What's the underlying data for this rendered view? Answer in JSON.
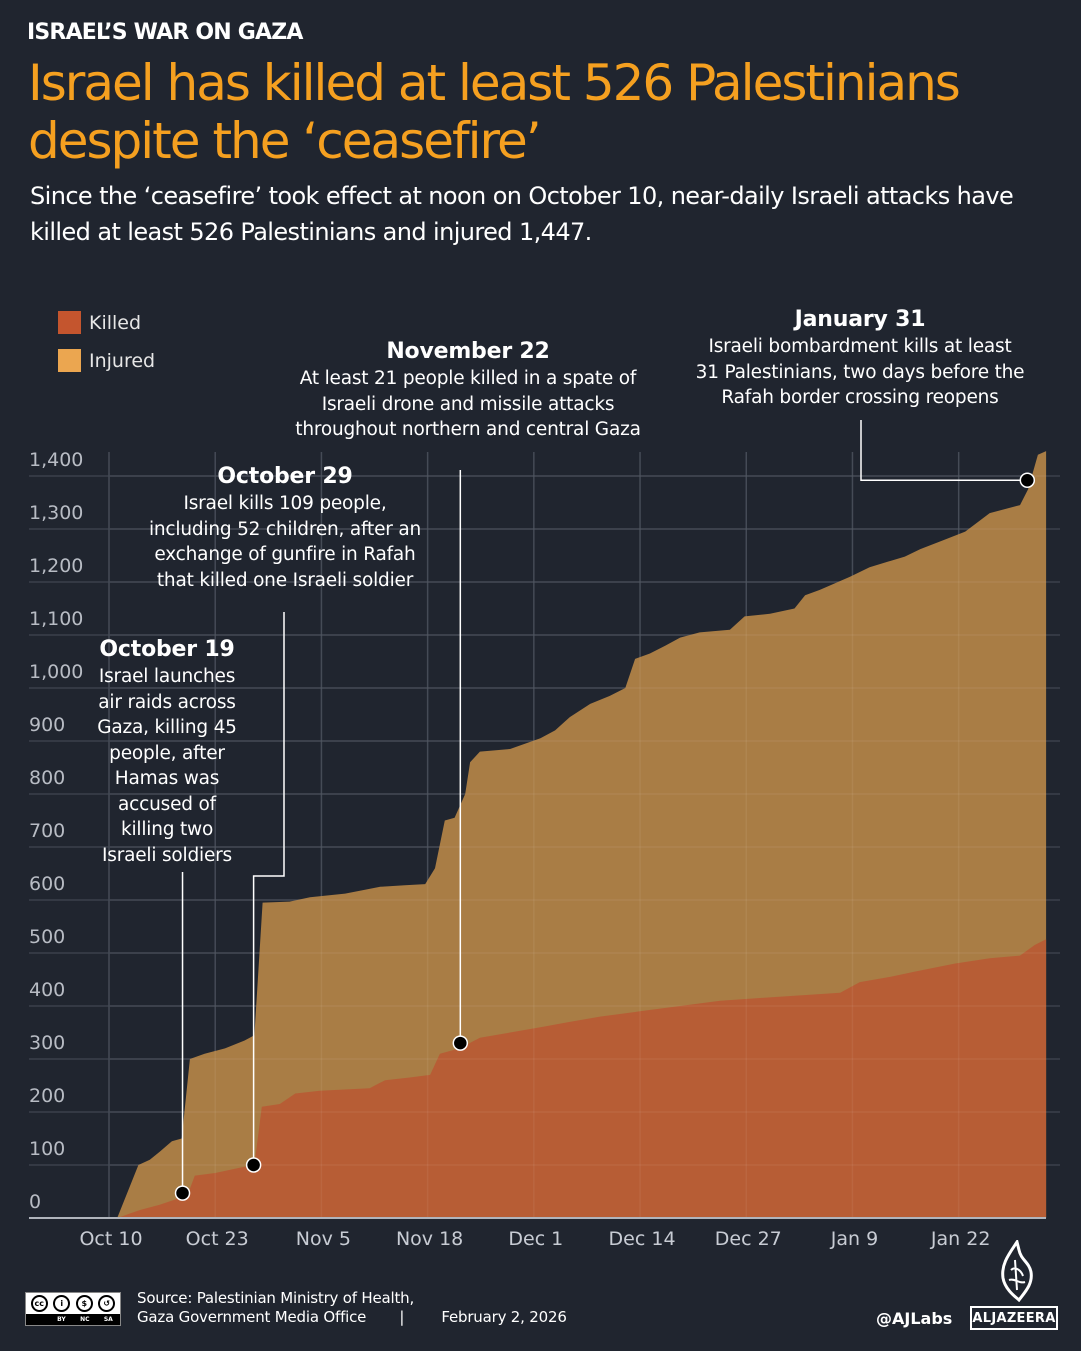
{
  "header": {
    "kicker": "ISRAEL’S WAR ON GAZA",
    "title": "Israel has killed at least 526 Palestinians despite the ‘ceasefire’",
    "subtitle": "Since the ‘ceasefire’ took effect at noon on October 10, near-daily Israeli attacks have killed at least 526 Palestinians and injured 1,447."
  },
  "legend": [
    {
      "label": "Killed",
      "color": "#c4552e"
    },
    {
      "label": "Injured",
      "color": "#eba650"
    }
  ],
  "annotations": [
    {
      "date": "October 19",
      "text": "Israel launches air raids across Gaza, killing 45 people, after Hamas was accused of killing two Israeli soldiers",
      "lines": [
        "Israel launches",
        "air raids across",
        "Gaza, killing 45",
        "people, after",
        "Hamas was",
        "accused of",
        "killing two",
        "Israeli soldiers"
      ],
      "day": 9,
      "value": 47,
      "series": "Killed"
    },
    {
      "date": "October 29",
      "text": "Israel kills 109 people, including 52 children, after an exchange of gunfire in Rafah that killed one Israeli soldier",
      "lines": [
        "Israel kills 109 people,",
        "including 52 children, after an",
        "exchange of gunfire in Rafah",
        "that killed one Israeli soldier"
      ],
      "day": 17.7,
      "value": 100,
      "series": "Killed"
    },
    {
      "date": "November 22",
      "text": "At least 21 people killed in a spate of Israeli drone and missile attacks throughout northern and central Gaza",
      "lines": [
        "At least 21 people killed in a spate of",
        "Israeli drone and missile attacks",
        "throughout northern and central Gaza"
      ],
      "day": 43,
      "value": 330,
      "series": "Killed"
    },
    {
      "date": "January 31",
      "text": "Israeli bombardment kills at least 31 Palestinians, two days before the Rafah border crossing reopens",
      "lines": [
        "Israeli bombardment kills at least",
        "31 Palestinians, two days before the",
        "Rafah border crossing reopens"
      ],
      "day": 112.4,
      "value": 1392,
      "series": "Injured"
    }
  ],
  "footer": {
    "source_line1": "Source:  Palestinian Ministry of Health,",
    "source_line2": "Gaza Government Media Office",
    "separator": "|",
    "date": "February 2, 2026",
    "handle": "@AJLabs",
    "brand": "ALJAZEERA",
    "license": [
      "BY",
      "NC",
      "SA"
    ],
    "license_badge": "cc"
  },
  "chart_data": {
    "type": "area",
    "title": "Israel has killed at least 526 Palestinians despite the ‘ceasefire’",
    "xlabel": "",
    "ylabel": "",
    "x_unit": "days since October 10",
    "x_tick_labels": [
      "Oct 10",
      "Oct 23",
      "Nov 5",
      "Nov 18",
      "Dec 1",
      "Dec 14",
      "Dec 27",
      "Jan 9",
      "Jan 22"
    ],
    "x_tick_days": [
      0,
      13,
      26,
      39,
      52,
      65,
      78,
      91,
      104
    ],
    "xlim": [
      0,
      115
    ],
    "y_ticks": [
      0,
      100,
      200,
      300,
      400,
      500,
      600,
      700,
      800,
      900,
      1000,
      1100,
      1200,
      1300,
      1400
    ],
    "y_tick_labels": [
      "0",
      "100",
      "200",
      "300",
      "400",
      "500",
      "600",
      "700",
      "800",
      "900",
      "1,000",
      "1,100",
      "1,200",
      "1,300",
      "1,400"
    ],
    "ylim": [
      0,
      1400
    ],
    "grid": true,
    "legend_position": "top-left",
    "series": [
      {
        "name": "Injured",
        "color": "#ad8046",
        "points": [
          [
            1,
            0
          ],
          [
            3.6,
            100
          ],
          [
            5,
            110
          ],
          [
            6.2,
            125
          ],
          [
            7.7,
            145
          ],
          [
            8.9,
            150
          ],
          [
            9.9,
            300
          ],
          [
            11.7,
            310
          ],
          [
            14.2,
            320
          ],
          [
            16.6,
            335
          ],
          [
            17.8,
            345
          ],
          [
            18.8,
            595
          ],
          [
            22.1,
            597
          ],
          [
            24.6,
            605
          ],
          [
            28.9,
            612
          ],
          [
            33.2,
            625
          ],
          [
            36.2,
            628
          ],
          [
            38.7,
            630
          ],
          [
            39.9,
            660
          ],
          [
            41.1,
            750
          ],
          [
            42.3,
            755
          ],
          [
            43.6,
            800
          ],
          [
            44.2,
            860
          ],
          [
            45.4,
            880
          ],
          [
            49.1,
            885
          ],
          [
            52.8,
            905
          ],
          [
            54.6,
            920
          ],
          [
            56.4,
            945
          ],
          [
            58.9,
            970
          ],
          [
            61.3,
            985
          ],
          [
            63.2,
            1000
          ],
          [
            64.4,
            1055
          ],
          [
            66.2,
            1065
          ],
          [
            68.1,
            1080
          ],
          [
            69.9,
            1095
          ],
          [
            72.3,
            1105
          ],
          [
            76,
            1110
          ],
          [
            77.8,
            1135
          ],
          [
            80.9,
            1140
          ],
          [
            83.9,
            1150
          ],
          [
            85.2,
            1175
          ],
          [
            87,
            1185
          ],
          [
            90.7,
            1210
          ],
          [
            93.1,
            1228
          ],
          [
            97.4,
            1248
          ],
          [
            99.3,
            1262
          ],
          [
            102.3,
            1280
          ],
          [
            104.8,
            1295
          ],
          [
            107.8,
            1330
          ],
          [
            111.5,
            1345
          ],
          [
            112.5,
            1375
          ],
          [
            113.7,
            1440
          ],
          [
            114.7,
            1447
          ]
        ]
      },
      {
        "name": "Killed",
        "color": "#b85c35",
        "points": [
          [
            1,
            0
          ],
          [
            3.8,
            15
          ],
          [
            6.2,
            25
          ],
          [
            8.1,
            35
          ],
          [
            9.9,
            55
          ],
          [
            10.5,
            80
          ],
          [
            13,
            85
          ],
          [
            16,
            95
          ],
          [
            17.8,
            100
          ],
          [
            18.7,
            210
          ],
          [
            20.9,
            215
          ],
          [
            22.8,
            235
          ],
          [
            25.8,
            240
          ],
          [
            31.9,
            245
          ],
          [
            33.8,
            260
          ],
          [
            36.8,
            265
          ],
          [
            39.3,
            270
          ],
          [
            40.5,
            310
          ],
          [
            42.9,
            320
          ],
          [
            45.4,
            340
          ],
          [
            49.1,
            350
          ],
          [
            52.8,
            360
          ],
          [
            56.4,
            370
          ],
          [
            60.1,
            380
          ],
          [
            65,
            390
          ],
          [
            69.9,
            400
          ],
          [
            74.8,
            410
          ],
          [
            79.7,
            415
          ],
          [
            84.6,
            420
          ],
          [
            89.5,
            425
          ],
          [
            91.9,
            445
          ],
          [
            95.6,
            455
          ],
          [
            98.7,
            465
          ],
          [
            103.5,
            480
          ],
          [
            107.8,
            490
          ],
          [
            111.5,
            495
          ],
          [
            113.3,
            515
          ],
          [
            114.7,
            526
          ]
        ]
      }
    ]
  }
}
